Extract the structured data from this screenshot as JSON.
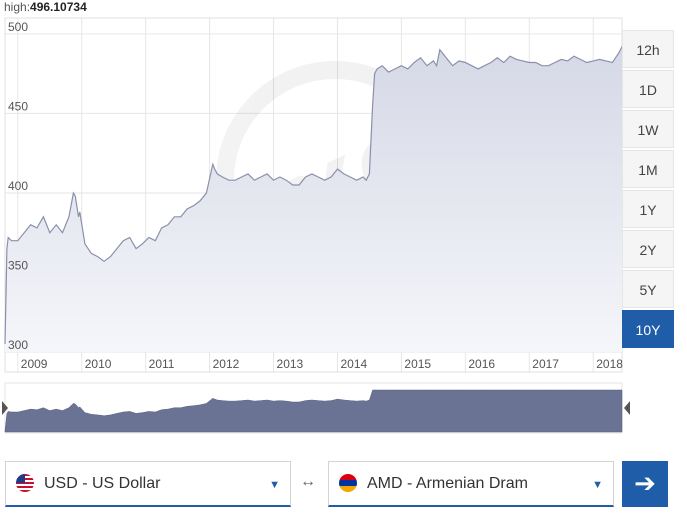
{
  "header": {
    "high_label": "high:",
    "high_value": "496.10734"
  },
  "range_buttons": [
    "12h",
    "1D",
    "1W",
    "1M",
    "1Y",
    "2Y",
    "5Y",
    "10Y"
  ],
  "active_range": "10Y",
  "from_currency": {
    "label": "USD - US Dollar",
    "flag_icon": "us-flag-icon"
  },
  "to_currency": {
    "label": "AMD - Armenian Dram",
    "flag_icon": "armenia-flag-icon"
  },
  "swap_icon": "swap-arrows-icon",
  "go_icon": "arrow-right-icon",
  "colors": {
    "accent": "#1f5da8",
    "line": "#8a90ac",
    "navigator": "#6b7394"
  },
  "chart_data": {
    "type": "area",
    "ylim": [
      300,
      510
    ],
    "yticks": [
      300,
      350,
      400,
      450,
      500
    ],
    "xlim": [
      2008.8,
      2018.45
    ],
    "xticks": [
      "2009",
      "2010",
      "2011",
      "2012",
      "2013",
      "2014",
      "2015",
      "2016",
      "2017",
      "2018"
    ],
    "grid": true,
    "series": [
      {
        "x": [
          2008.8,
          2008.83,
          2008.85,
          2008.9,
          2009.0,
          2009.1,
          2009.2,
          2009.3,
          2009.4,
          2009.5,
          2009.6,
          2009.7,
          2009.8,
          2009.87,
          2009.9,
          2009.95,
          2009.97,
          2010.05,
          2010.15,
          2010.25,
          2010.35,
          2010.45,
          2010.55,
          2010.65,
          2010.75,
          2010.85,
          2010.95,
          2011.05,
          2011.15,
          2011.25,
          2011.35,
          2011.45,
          2011.55,
          2011.65,
          2011.75,
          2011.85,
          2011.95,
          2012.05,
          2012.08,
          2012.12,
          2012.2,
          2012.3,
          2012.4,
          2012.5,
          2012.6,
          2012.7,
          2012.8,
          2012.9,
          2013.0,
          2013.1,
          2013.2,
          2013.3,
          2013.4,
          2013.5,
          2013.6,
          2013.7,
          2013.8,
          2013.9,
          2014.0,
          2014.1,
          2014.2,
          2014.3,
          2014.4,
          2014.45,
          2014.5,
          2014.55,
          2014.58,
          2014.62,
          2014.7,
          2014.8,
          2014.9,
          2015.0,
          2015.1,
          2015.2,
          2015.3,
          2015.4,
          2015.5,
          2015.55,
          2015.6,
          2015.7,
          2015.8,
          2015.9,
          2016.0,
          2016.1,
          2016.2,
          2016.3,
          2016.4,
          2016.5,
          2016.6,
          2016.7,
          2016.8,
          2016.9,
          2017.0,
          2017.1,
          2017.2,
          2017.3,
          2017.4,
          2017.5,
          2017.6,
          2017.7,
          2017.8,
          2017.9,
          2018.0,
          2018.1,
          2018.2,
          2018.3,
          2018.4,
          2018.45
        ],
        "y": [
          305,
          365,
          372,
          370,
          370,
          375,
          380,
          378,
          385,
          375,
          380,
          375,
          385,
          400,
          398,
          385,
          388,
          368,
          362,
          360,
          357,
          360,
          365,
          370,
          372,
          365,
          368,
          372,
          370,
          378,
          380,
          385,
          385,
          390,
          392,
          395,
          400,
          418,
          415,
          412,
          410,
          408,
          408,
          410,
          412,
          408,
          410,
          412,
          408,
          410,
          408,
          405,
          405,
          410,
          412,
          410,
          408,
          410,
          415,
          412,
          410,
          408,
          410,
          408,
          412,
          455,
          475,
          478,
          480,
          476,
          478,
          480,
          478,
          482,
          485,
          480,
          483,
          480,
          490,
          485,
          480,
          483,
          482,
          480,
          478,
          480,
          482,
          485,
          482,
          486,
          484,
          483,
          482,
          482,
          480,
          480,
          482,
          484,
          483,
          486,
          484,
          482,
          483,
          484,
          483,
          482,
          488,
          492
        ]
      }
    ]
  }
}
